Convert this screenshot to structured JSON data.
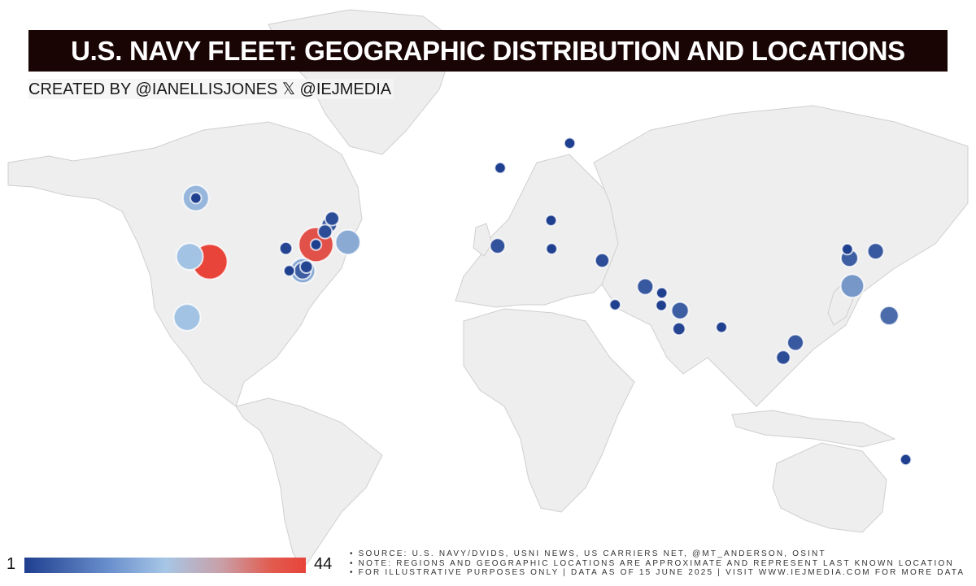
{
  "title": "U.S. NAVY FLEET: GEOGRAPHIC DISTRIBUTION AND LOCATIONS",
  "credit": "CREATED BY @IANELLISJONES 𝕏 @IEJMEDIA",
  "legend": {
    "min_label": "1",
    "max_label": "44",
    "colors": [
      "#1f3f8f",
      "#a6c6e6",
      "#e8443a"
    ]
  },
  "notes": [
    "• SOURCE: U.S. NAVY/DVIDS, USNI NEWS, US CARRIERS NET, @MT_ANDERSON, OSINT",
    "• NOTE: REGIONS AND GEOGRAPHIC LOCATIONS ARE APPROXIMATE AND REPRESENT LAST KNOWN LOCATION",
    "• FOR ILLUSTRATIVE PURPOSES ONLY | DATA AS OF 15 JUNE 2025 | VISIT WWW.IEJMEDIA.COM FOR MORE DATA"
  ],
  "map_colors": {
    "land": "#eeeeee",
    "border": "#cfcfcf",
    "ocean": "#ffffff"
  },
  "markers": [
    {
      "lon": -122.6,
      "lat": 47.6,
      "value": 20
    },
    {
      "lon": -122.6,
      "lat": 47.6,
      "value": 1
    },
    {
      "lon": -125.0,
      "lat": 34.0,
      "value": 22
    },
    {
      "lon": -117.2,
      "lat": 32.7,
      "value": 44
    },
    {
      "lon": -87.9,
      "lat": 36.0,
      "value": 2
    },
    {
      "lon": -76.3,
      "lat": 36.9,
      "value": 42
    },
    {
      "lon": -76.3,
      "lat": 36.9,
      "value": 1
    },
    {
      "lon": -72.8,
      "lat": 40.0,
      "value": 3
    },
    {
      "lon": -71.2,
      "lat": 41.6,
      "value": 4
    },
    {
      "lon": -70.1,
      "lat": 43.0,
      "value": 3
    },
    {
      "lon": -64.0,
      "lat": 37.5,
      "value": 18
    },
    {
      "lon": -81.4,
      "lat": 30.4,
      "value": 18
    },
    {
      "lon": -81.4,
      "lat": 30.4,
      "value": 6
    },
    {
      "lon": -80.0,
      "lat": 31.4,
      "value": 2
    },
    {
      "lon": -86.6,
      "lat": 30.4,
      "value": 1
    },
    {
      "lon": -126.0,
      "lat": 17.5,
      "value": 22
    },
    {
      "lon": -5.3,
      "lat": 54.0,
      "value": 1
    },
    {
      "lon": 21.5,
      "lat": 59.0,
      "value": 1
    },
    {
      "lon": 14.3,
      "lat": 42.6,
      "value": 1
    },
    {
      "lon": -6.3,
      "lat": 36.6,
      "value": 4
    },
    {
      "lon": 14.5,
      "lat": 35.9,
      "value": 1
    },
    {
      "lon": 34.0,
      "lat": 33.0,
      "value": 3
    },
    {
      "lon": 50.6,
      "lat": 26.2,
      "value": 5
    },
    {
      "lon": 57.0,
      "lat": 24.5,
      "value": 1
    },
    {
      "lon": 39.0,
      "lat": 21.2,
      "value": 1
    },
    {
      "lon": 56.8,
      "lat": 21.0,
      "value": 1
    },
    {
      "lon": 64.0,
      "lat": 19.5,
      "value": 6
    },
    {
      "lon": 63.6,
      "lat": 14.0,
      "value": 2
    },
    {
      "lon": 80.0,
      "lat": 14.5,
      "value": 1
    },
    {
      "lon": 128.5,
      "lat": 35.8,
      "value": 1
    },
    {
      "lon": 129.3,
      "lat": 33.6,
      "value": 6
    },
    {
      "lon": 139.4,
      "lat": 35.3,
      "value": 5
    },
    {
      "lon": 130.4,
      "lat": 26.4,
      "value": 15
    },
    {
      "lon": 144.6,
      "lat": 18.0,
      "value": 8
    },
    {
      "lon": 108.5,
      "lat": 9.6,
      "value": 5
    },
    {
      "lon": 103.8,
      "lat": 4.5,
      "value": 3
    },
    {
      "lon": 151.0,
      "lat": -34.0,
      "value": 1
    }
  ]
}
